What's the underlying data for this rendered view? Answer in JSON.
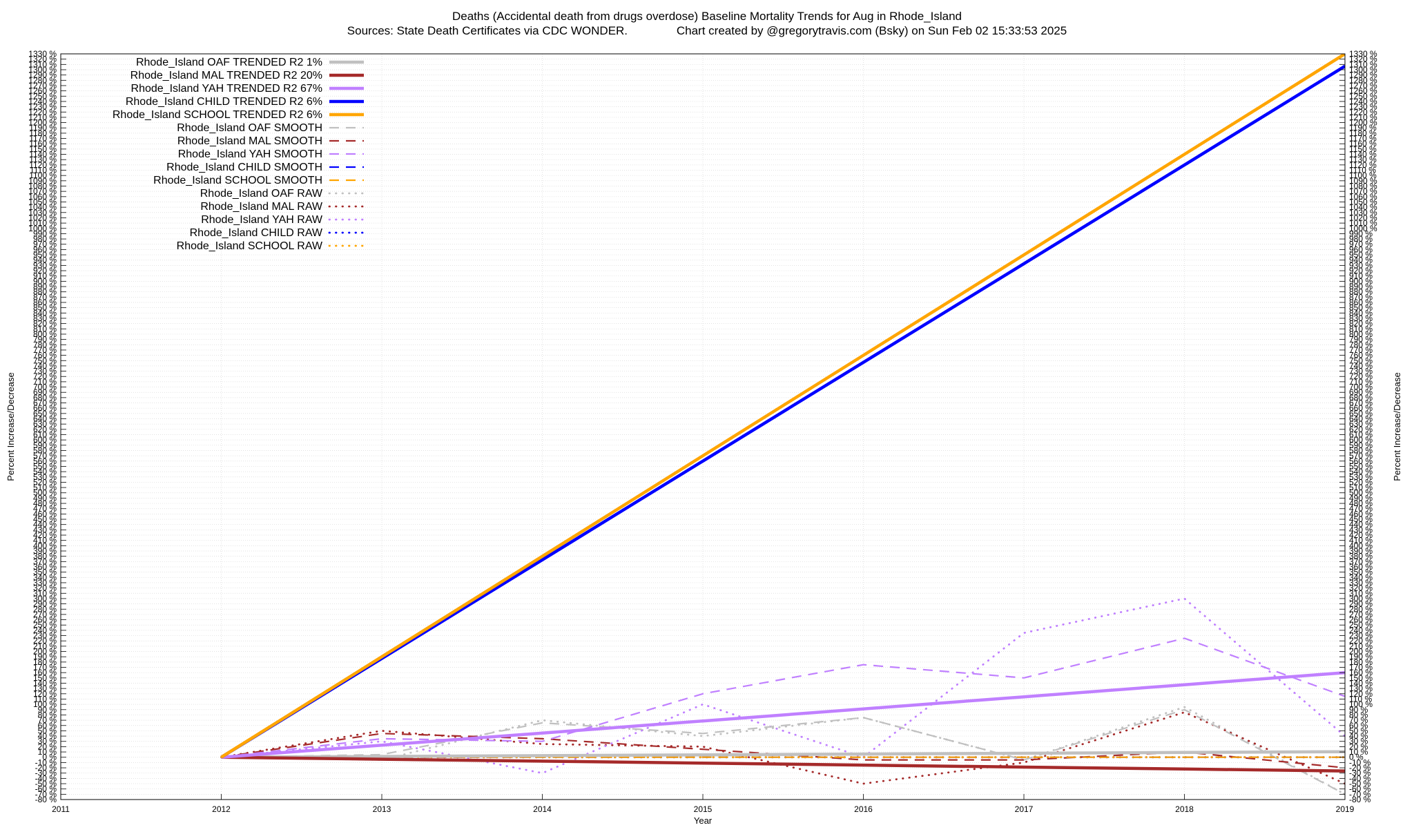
{
  "chart_data": {
    "type": "line",
    "title": "Deaths (Accidental death from drugs overdose)  Baseline Mortality Trends for Aug in Rhode_Island",
    "subtitle": "Sources: State Death Certificates via CDC WONDER.               Chart created by @gregorytravis.com (Bsky) on Sun Feb 02 15:33:53 2025",
    "xlabel": "Year",
    "ylabel": "Percent Increase/Decrease",
    "y2label": "Percent Increase/Decrease",
    "xlim": [
      2011,
      2019
    ],
    "ylim": [
      -80,
      1330
    ],
    "x_ticks": [
      "2011",
      "2012",
      "2013",
      "2014",
      "2015",
      "2016",
      "2017",
      "2018",
      "2019"
    ],
    "y_tick_values": [
      -80,
      -70,
      -60,
      -50,
      -40,
      -30,
      -20,
      -10,
      0,
      10,
      20,
      30,
      40,
      50,
      60,
      70,
      80,
      90,
      100,
      110,
      120,
      130,
      140,
      150,
      160,
      170,
      180,
      190,
      200,
      210,
      220,
      230,
      240,
      250,
      260,
      270,
      280,
      290,
      300,
      310,
      320,
      330,
      340,
      350,
      360,
      370,
      380,
      390,
      400,
      410,
      420,
      430,
      440,
      450,
      460,
      470,
      480,
      490,
      500,
      510,
      520,
      530,
      540,
      550,
      560,
      570,
      580,
      590,
      600,
      610,
      620,
      630,
      640,
      650,
      660,
      670,
      680,
      690,
      700,
      710,
      720,
      730,
      740,
      750,
      760,
      770,
      780,
      790,
      800,
      810,
      820,
      830,
      840,
      850,
      860,
      870,
      880,
      890,
      900,
      910,
      920,
      930,
      940,
      950,
      960,
      970,
      980,
      990,
      1000,
      1010,
      1020,
      1030,
      1040,
      1050,
      1060,
      1070,
      1080,
      1090,
      1100,
      1110,
      1120,
      1130,
      1140,
      1150,
      1160,
      1170,
      1180,
      1190,
      1200,
      1210,
      1220,
      1230,
      1240,
      1250,
      1260,
      1270,
      1280,
      1290,
      1300,
      1310,
      1320,
      1330
    ],
    "y_tick_suffix": " %",
    "grid": true,
    "legend_position": "top-left",
    "x": [
      2012,
      2013,
      2014,
      2015,
      2016,
      2017,
      2018,
      2019
    ],
    "series": [
      {
        "name": "Rhode_Island OAF TRENDED R2   1%",
        "style": "trend",
        "color": "#c0c0c0",
        "values": [
          0,
          1.5,
          3,
          4.5,
          6,
          7.5,
          9,
          10.5
        ]
      },
      {
        "name": "Rhode_Island MAL TRENDED R2  20%",
        "style": "trend",
        "color": "#a52a2a",
        "values": [
          0,
          -3.7,
          -7.4,
          -11.1,
          -14.9,
          -18.6,
          -22.3,
          -26
        ]
      },
      {
        "name": "Rhode_Island YAH TRENDED R2  67%",
        "style": "trend",
        "color": "#c080ff",
        "values": [
          0,
          22.9,
          45.7,
          68.6,
          91.4,
          114.3,
          137.1,
          160
        ]
      },
      {
        "name": "Rhode_Island CHILD TRENDED R2   6%",
        "style": "trend",
        "color": "#0000ff",
        "values": [
          0,
          186.7,
          373.3,
          560,
          746.7,
          933.3,
          1120,
          1306.7
        ]
      },
      {
        "name": "Rhode_Island SCHOOL TRENDED R2   6%",
        "style": "trend",
        "color": "#ffa500",
        "values": [
          0,
          190,
          380,
          570,
          760,
          950,
          1140,
          1330
        ]
      },
      {
        "name": "Rhode_Island OAF SMOOTH",
        "style": "smooth",
        "color": "#c0c0c0",
        "values": [
          0,
          5,
          65,
          45,
          75,
          -5,
          90,
          -70
        ]
      },
      {
        "name": "Rhode_Island MAL SMOOTH",
        "style": "smooth",
        "color": "#a52a2a",
        "values": [
          0,
          45,
          35,
          15,
          -5,
          -5,
          10,
          -20
        ]
      },
      {
        "name": "Rhode_Island YAH SMOOTH",
        "style": "smooth",
        "color": "#c080ff",
        "values": [
          0,
          35,
          30,
          120,
          175,
          150,
          225,
          115
        ]
      },
      {
        "name": "Rhode_Island CHILD SMOOTH",
        "style": "smooth",
        "color": "#0000ff",
        "values": [
          0,
          0,
          0,
          0,
          0,
          0,
          0,
          0
        ]
      },
      {
        "name": "Rhode_Island SCHOOL SMOOTH",
        "style": "smooth",
        "color": "#ffa500",
        "values": [
          0,
          0,
          0,
          0,
          0,
          0,
          0,
          0
        ]
      },
      {
        "name": "Rhode_Island OAF RAW",
        "style": "raw",
        "color": "#c0c0c0",
        "values": [
          0,
          -5,
          70,
          40,
          75,
          -5,
          95,
          -70
        ]
      },
      {
        "name": "Rhode_Island MAL RAW",
        "style": "raw",
        "color": "#a52a2a",
        "values": [
          0,
          50,
          25,
          20,
          -50,
          -10,
          85,
          -50
        ]
      },
      {
        "name": "Rhode_Island YAH RAW",
        "style": "raw",
        "color": "#c080ff",
        "values": [
          0,
          30,
          -30,
          100,
          0,
          235,
          300,
          40
        ]
      },
      {
        "name": "Rhode_Island CHILD RAW",
        "style": "raw",
        "color": "#0000ff",
        "values": [
          0,
          0,
          0,
          0,
          0,
          0,
          0,
          0
        ]
      },
      {
        "name": "Rhode_Island SCHOOL RAW",
        "style": "raw",
        "color": "#ffa500",
        "values": [
          0,
          0,
          0,
          0,
          0,
          0,
          0,
          0
        ]
      }
    ]
  }
}
